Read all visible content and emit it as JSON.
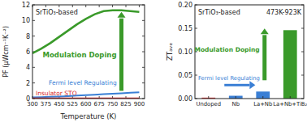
{
  "chart_data": [
    {
      "type": "line",
      "y_label": "PF (μWcm⁻¹K⁻²)",
      "x_label": "Temperature (K)",
      "annotations": [
        "SrTiO₃-based"
      ],
      "x": [
        300,
        350,
        400,
        450,
        500,
        550,
        600,
        650,
        700,
        750,
        800,
        850,
        900
      ],
      "series": [
        {
          "name": "Modulation Doping",
          "color": "#3a9a2a",
          "values": [
            5.8,
            6.4,
            7.1,
            7.9,
            8.7,
            9.5,
            10.2,
            10.8,
            11.2,
            11.3,
            11.3,
            11.2,
            11.1
          ]
        },
        {
          "name": "Fermi level Regulating",
          "color": "#3a7fd5",
          "values": [
            0.15,
            0.18,
            0.22,
            0.27,
            0.32,
            0.38,
            0.44,
            0.5,
            0.56,
            0.62,
            0.68,
            0.74,
            0.8
          ]
        },
        {
          "name": "Insulator STO",
          "color": "#d62728",
          "values": [
            0.03,
            0.03,
            0.03,
            0.03,
            0.03,
            0.03,
            0.03,
            0.03,
            0.03,
            0.03,
            0.03,
            0.03,
            0.03
          ]
        }
      ],
      "xlim": [
        300,
        930
      ],
      "xticks": [
        300,
        375,
        450,
        525,
        600,
        675,
        750,
        825,
        900
      ],
      "ylim": [
        0,
        12
      ],
      "yticks": [
        0,
        2,
        4,
        6,
        8,
        10,
        12
      ]
    },
    {
      "type": "bar",
      "y_label": "ZTₐᵥₑ",
      "annotations": [
        "SrTiO₃-based",
        "473K-923K",
        "Modulation Doping",
        "Fermi level Regulating"
      ],
      "categories": [
        "Undoped",
        "Nb",
        "La+Nb",
        "La+Nb+TiB₂"
      ],
      "values": [
        0.002,
        0.006,
        0.015,
        0.146
      ],
      "colors": [
        "#d62728",
        "#3a7fd5",
        "#3a7fd5",
        "#3a9a2a"
      ],
      "ylim": [
        0,
        0.2
      ],
      "yticks": [
        {
          "value": 0,
          "label": "0.00"
        },
        {
          "value": 0.05,
          "label": "0.05"
        },
        {
          "value": 0.1,
          "label": "0.10"
        },
        {
          "value": 0.15,
          "label": "0.15"
        },
        {
          "value": 0.2,
          "label": "0.20"
        }
      ]
    }
  ]
}
